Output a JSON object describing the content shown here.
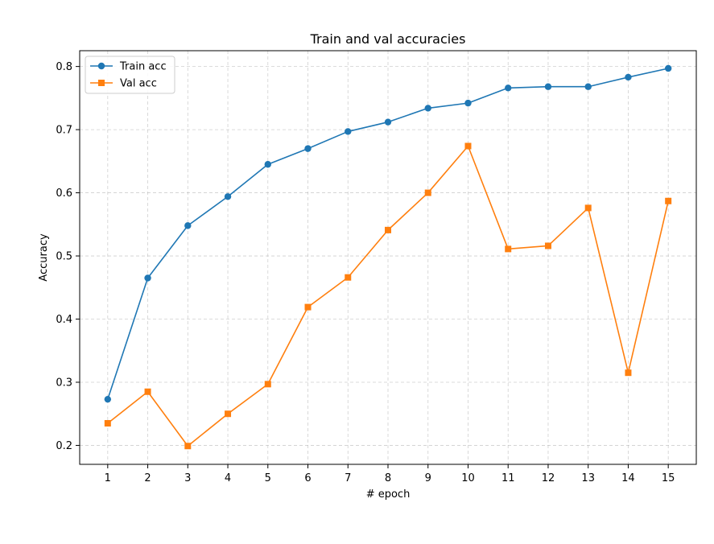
{
  "chart_data": {
    "type": "line",
    "title": "Train and val accuracies",
    "xlabel": "# epoch",
    "ylabel": "Accuracy",
    "x": [
      1,
      2,
      3,
      4,
      5,
      6,
      7,
      8,
      9,
      10,
      11,
      12,
      13,
      14,
      15
    ],
    "xlim": [
      0.3,
      15.7
    ],
    "ylim": [
      0.17,
      0.825
    ],
    "xticks": [
      1,
      2,
      3,
      4,
      5,
      6,
      7,
      8,
      9,
      10,
      11,
      12,
      13,
      14,
      15
    ],
    "yticks": [
      0.2,
      0.3,
      0.4,
      0.5,
      0.6,
      0.7,
      0.8
    ],
    "grid": true,
    "legend": "top-left",
    "series": [
      {
        "name": "Train acc",
        "marker": "circle",
        "color": "#1f77b4",
        "values": [
          0.273,
          0.465,
          0.548,
          0.594,
          0.645,
          0.67,
          0.697,
          0.712,
          0.734,
          0.742,
          0.766,
          0.768,
          0.768,
          0.783,
          0.797
        ]
      },
      {
        "name": "Val acc",
        "marker": "square",
        "color": "#ff7f0e",
        "values": [
          0.235,
          0.285,
          0.199,
          0.25,
          0.297,
          0.419,
          0.466,
          0.541,
          0.6,
          0.674,
          0.511,
          0.516,
          0.576,
          0.315,
          0.587
        ]
      }
    ]
  }
}
